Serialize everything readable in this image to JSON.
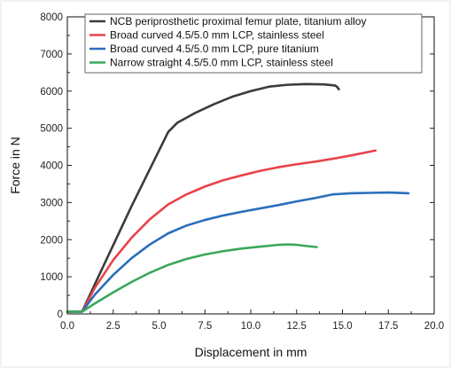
{
  "chart_data": {
    "type": "line",
    "title": "",
    "xlabel": "Displacement in mm",
    "ylabel": "Force in N",
    "xlim": [
      0,
      20
    ],
    "ylim": [
      0,
      8000
    ],
    "xticks": [
      "0.0",
      "2.5",
      "5.0",
      "7.5",
      "10.0",
      "12.5",
      "15.0",
      "17.5",
      "20.0"
    ],
    "yticks": [
      "0",
      "1000",
      "2000",
      "3000",
      "4000",
      "5000",
      "6000",
      "7000",
      "8000"
    ],
    "grid": false,
    "legend_position": "top-left",
    "series": [
      {
        "name": "NCB periprosthetic proximal femur plate, titanium alloy",
        "color": "#3b3b3b",
        "x": [
          0,
          0.8,
          1.5,
          2.5,
          3.5,
          4.5,
          5.5,
          6.0,
          7.0,
          8.0,
          9.0,
          10.0,
          11.0,
          12.0,
          13.0,
          14.0,
          14.6,
          14.7,
          14.8
        ],
        "y": [
          60,
          60,
          800,
          1850,
          2900,
          3900,
          4900,
          5150,
          5420,
          5650,
          5850,
          6000,
          6120,
          6170,
          6190,
          6180,
          6150,
          6120,
          6050
        ]
      },
      {
        "name": "Broad curved 4.5/5.0 mm LCP, stainless steel",
        "color": "#e8434a",
        "x": [
          0,
          0.8,
          1.5,
          2.5,
          3.5,
          4.5,
          5.5,
          6.5,
          7.5,
          8.5,
          9.5,
          10.5,
          11.5,
          12.5,
          13.5,
          14.5,
          15.5,
          16.8
        ],
        "y": [
          60,
          60,
          700,
          1450,
          2050,
          2550,
          2950,
          3220,
          3430,
          3600,
          3730,
          3850,
          3950,
          4030,
          4100,
          4180,
          4270,
          4400
        ]
      },
      {
        "name": "Broad curved 4.5/5.0 mm LCP, pure titanium",
        "color": "#2a6ebb",
        "x": [
          0,
          0.8,
          1.5,
          2.5,
          3.5,
          4.5,
          5.5,
          6.5,
          7.5,
          8.5,
          9.5,
          10.5,
          11.5,
          12.5,
          13.5,
          14.5,
          15.5,
          16.5,
          17.5,
          18.6
        ],
        "y": [
          60,
          60,
          520,
          1050,
          1500,
          1870,
          2170,
          2380,
          2530,
          2650,
          2750,
          2840,
          2930,
          3030,
          3120,
          3220,
          3250,
          3260,
          3270,
          3250
        ]
      },
      {
        "name": "Narrow straight 4.5/5.0 mm LCP, stainless steel",
        "color": "#3aa85a",
        "x": [
          0,
          0.8,
          1.5,
          2.5,
          3.5,
          4.5,
          5.5,
          6.5,
          7.5,
          8.5,
          9.5,
          10.5,
          11.5,
          12.0,
          12.5,
          13.0,
          13.6
        ],
        "y": [
          60,
          60,
          280,
          580,
          860,
          1110,
          1320,
          1480,
          1600,
          1690,
          1760,
          1810,
          1860,
          1870,
          1860,
          1830,
          1800
        ]
      }
    ]
  }
}
